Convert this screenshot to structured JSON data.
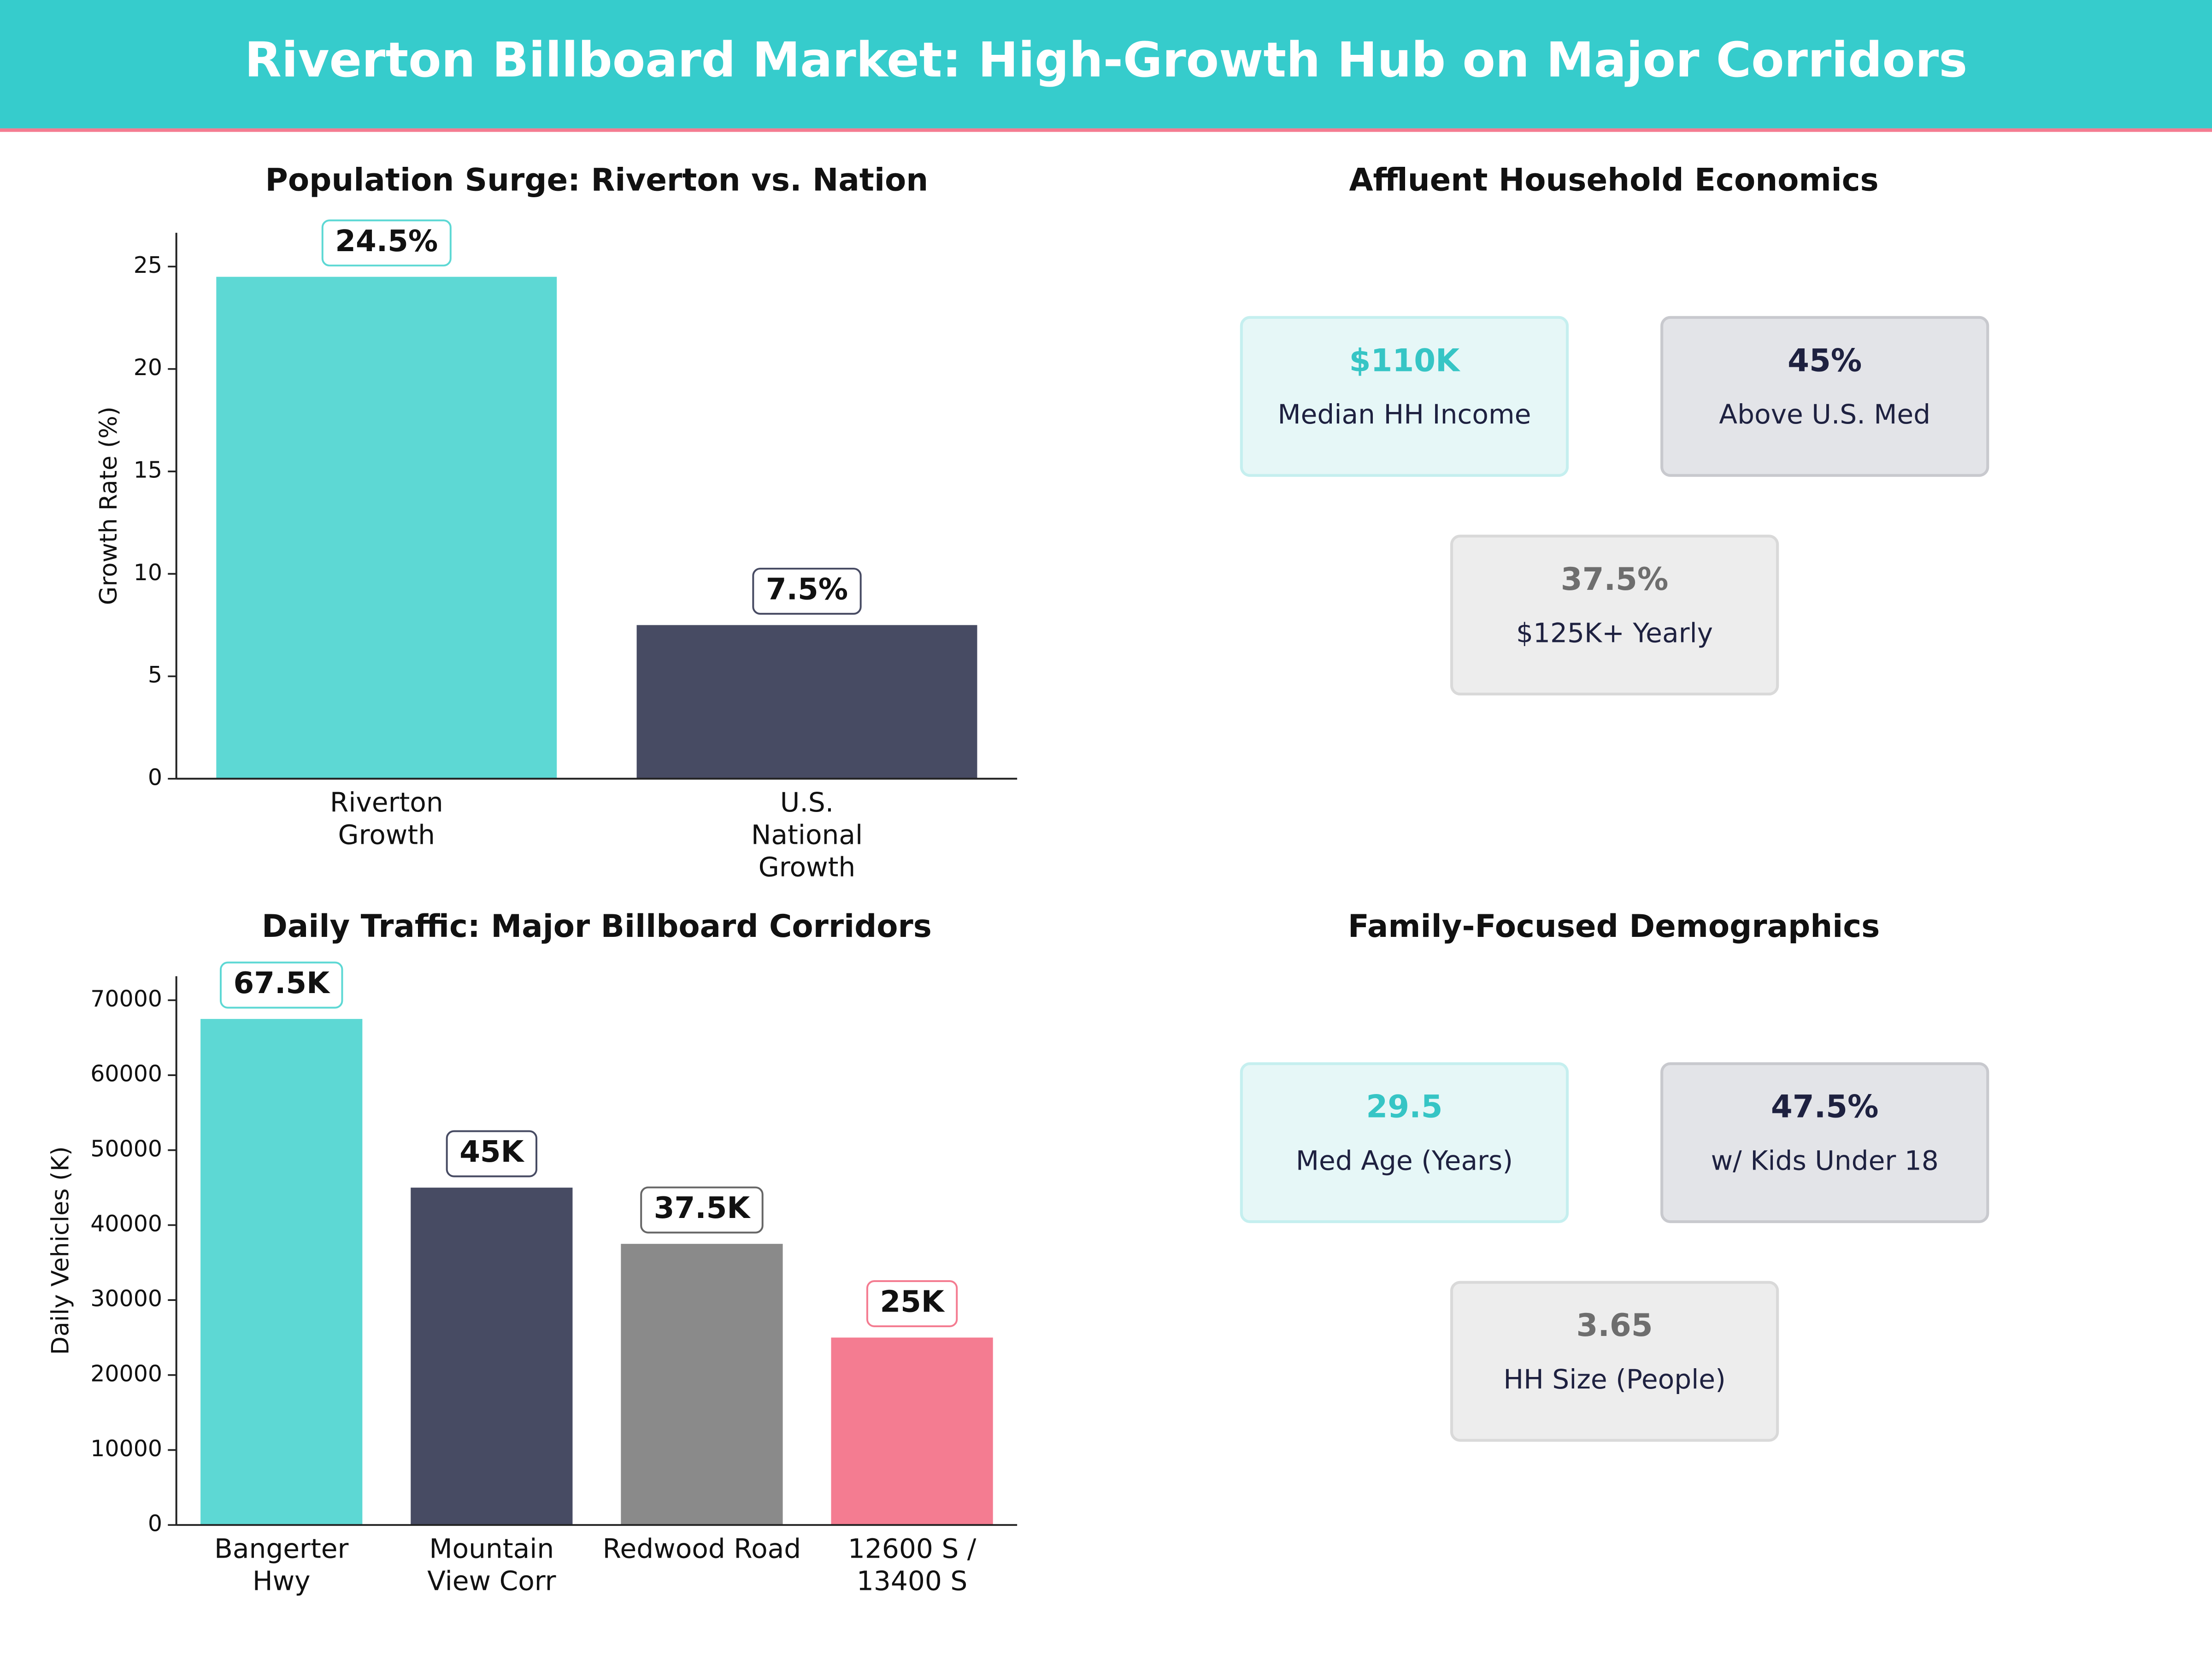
{
  "header": {
    "title": "Riverton Billboard Market: High-Growth Hub on Major Corridors"
  },
  "chart_data": [
    {
      "type": "bar",
      "title": "Population Surge: Riverton vs. Nation",
      "y_label": "Growth Rate (%)",
      "categories": [
        "Riverton\nGrowth",
        "U.S.\nNational\nGrowth"
      ],
      "values": [
        24.5,
        7.5
      ],
      "value_labels": [
        "24.5%",
        "7.5%"
      ],
      "colors": [
        "#5dd8d4",
        "#474b63"
      ],
      "label_borders": [
        "#5dd8d4",
        "#474b63"
      ],
      "ylim": [
        0,
        26.65
      ],
      "yticks": [
        0,
        5,
        10,
        15,
        20,
        25
      ]
    },
    {
      "type": "bar",
      "title": "Daily Traffic: Major Billboard Corridors",
      "y_label": "Daily Vehicles (K)",
      "categories": [
        "Bangerter\nHwy",
        "Mountain\nView Corr",
        "Redwood Road",
        "12600 S /\n13400 S"
      ],
      "values": [
        67500,
        45000,
        37500,
        25000
      ],
      "value_labels": [
        "67.5K",
        "45K",
        "37.5K",
        "25K"
      ],
      "colors": [
        "#5dd8d4",
        "#474b63",
        "#8a8a8a",
        "#f47c91"
      ],
      "label_borders": [
        "#5dd8d4",
        "#474b63",
        "#666666",
        "#f47c91"
      ],
      "ylim": [
        0,
        73200
      ],
      "yticks": [
        0,
        10000,
        20000,
        30000,
        40000,
        50000,
        60000,
        70000
      ]
    }
  ],
  "panels": [
    {
      "title": "Affluent Household Economics",
      "cards": [
        {
          "value": "$110K",
          "label": "Median HH Income",
          "color": "#36c5c5"
        },
        {
          "value": "45%",
          "label": "Above U.S. Med",
          "color": "#1e2140"
        },
        {
          "value": "37.5%",
          "label": "$125K+ Yearly",
          "color": "#6e6e6e"
        }
      ]
    },
    {
      "title": "Family-Focused Demographics",
      "cards": [
        {
          "value": "29.5",
          "label": "Med Age (Years)",
          "color": "#36c5c5"
        },
        {
          "value": "47.5%",
          "label": "w/ Kids Under 18",
          "color": "#1e2140"
        },
        {
          "value": "3.65",
          "label": "HH Size (People)",
          "color": "#6e6e6e"
        }
      ]
    }
  ]
}
